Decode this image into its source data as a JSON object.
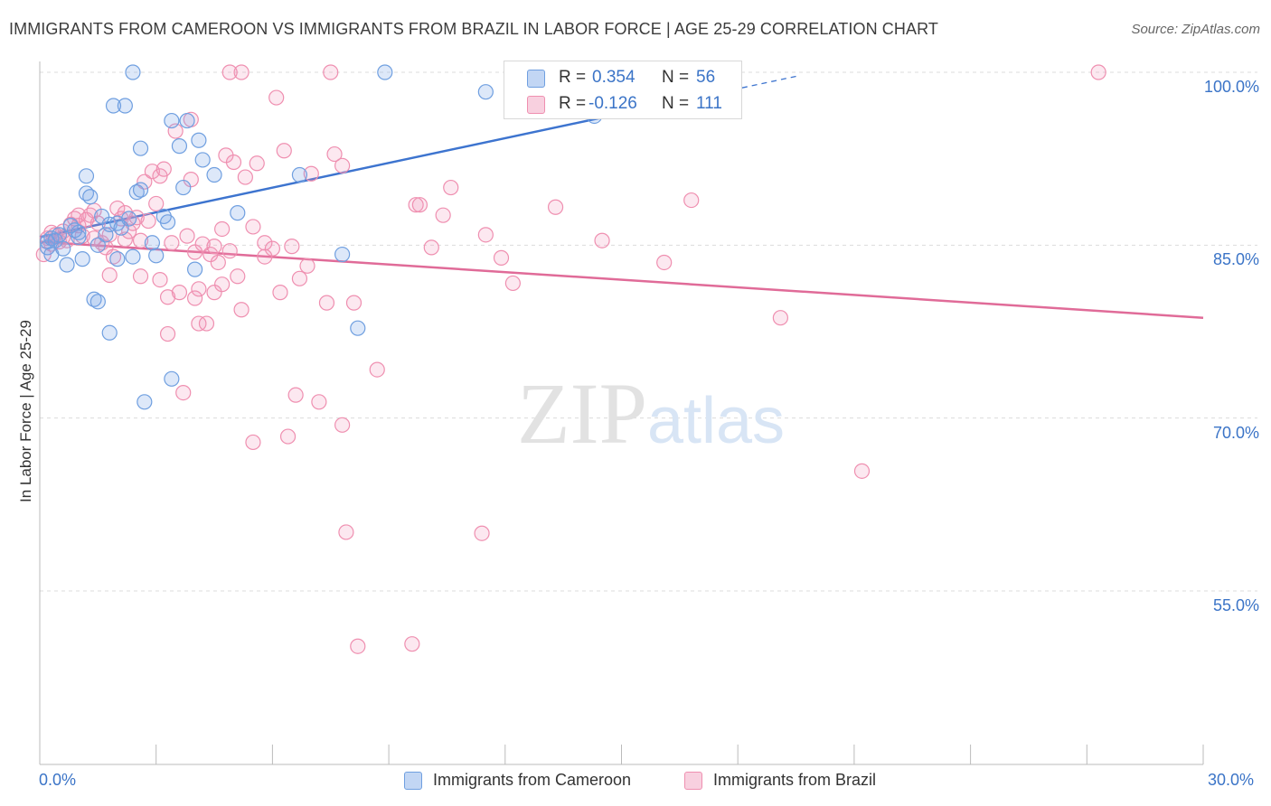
{
  "title": "IMMIGRANTS FROM CAMEROON VS IMMIGRANTS FROM BRAZIL IN LABOR FORCE | AGE 25-29 CORRELATION CHART",
  "source": "Source: ZipAtlas.com",
  "watermark": "ZIPatlas",
  "colors": {
    "cameroon": "#6f9fe0",
    "cameroon_fill": "rgba(120,165,230,0.25)",
    "cameroon_line": "#3d74cf",
    "brazil": "#ef8fb0",
    "brazil_fill": "rgba(240,150,185,0.22)",
    "brazil_line": "#e06b98",
    "tick_text": "#3b74c7",
    "grid": "#dcdcdc"
  },
  "legend": {
    "rows": [
      {
        "r_label": "R =",
        "r_value": "0.354",
        "n_label": "N =",
        "n_value": "56"
      },
      {
        "r_label": "R =",
        "r_value": "-0.126",
        "n_label": "N =",
        "n_value": "111"
      }
    ]
  },
  "bottom_legend": [
    "Immigrants from Cameroon",
    "Immigrants from Brazil"
  ],
  "chart_data": {
    "type": "scatter",
    "title": "IMMIGRANTS FROM CAMEROON VS IMMIGRANTS FROM BRAZIL IN LABOR FORCE | AGE 25-29 CORRELATION CHART",
    "xlabel": "",
    "ylabel": "In Labor Force | Age 25-29",
    "xlim": [
      0,
      30
    ],
    "ylim": [
      40,
      100
    ],
    "x_tick_labels": [
      "0.0%",
      "30.0%"
    ],
    "y_ticks": [
      55,
      70,
      85,
      100
    ],
    "y_tick_labels": [
      "55.0%",
      "70.0%",
      "85.0%",
      "100.0%"
    ],
    "grid": true,
    "legend_position": "top-center",
    "series": [
      {
        "name": "Immigrants from Cameroon",
        "r": 0.354,
        "n": 56,
        "trend": {
          "x0": 0,
          "y0": 85.7,
          "x1": 15.1,
          "y1": 96.5,
          "dash_to_x": 19.5
        },
        "points": [
          [
            0.2,
            85.3
          ],
          [
            0.2,
            84.8
          ],
          [
            0.3,
            84.2
          ],
          [
            0.3,
            85.6
          ],
          [
            0.4,
            85.4
          ],
          [
            0.5,
            85.9
          ],
          [
            0.6,
            84.7
          ],
          [
            0.7,
            83.3
          ],
          [
            0.8,
            86.7
          ],
          [
            1.0,
            86.1
          ],
          [
            1.1,
            83.8
          ],
          [
            1.2,
            91.0
          ],
          [
            1.2,
            89.5
          ],
          [
            1.3,
            89.2
          ],
          [
            1.4,
            80.3
          ],
          [
            1.5,
            80.1
          ],
          [
            1.6,
            87.5
          ],
          [
            1.7,
            85.9
          ],
          [
            1.8,
            86.8
          ],
          [
            1.8,
            77.4
          ],
          [
            1.9,
            97.1
          ],
          [
            2.0,
            86.9
          ],
          [
            2.0,
            83.8
          ],
          [
            2.2,
            97.1
          ],
          [
            2.3,
            87.3
          ],
          [
            2.4,
            100.0
          ],
          [
            2.4,
            84.0
          ],
          [
            2.5,
            89.6
          ],
          [
            2.6,
            93.4
          ],
          [
            2.6,
            89.8
          ],
          [
            2.7,
            71.4
          ],
          [
            2.9,
            85.2
          ],
          [
            3.0,
            84.1
          ],
          [
            3.2,
            87.5
          ],
          [
            3.3,
            87.0
          ],
          [
            3.4,
            73.4
          ],
          [
            3.4,
            95.8
          ],
          [
            3.6,
            93.6
          ],
          [
            3.7,
            90.0
          ],
          [
            3.8,
            95.8
          ],
          [
            4.0,
            82.9
          ],
          [
            4.1,
            94.1
          ],
          [
            4.2,
            92.4
          ],
          [
            4.5,
            91.1
          ],
          [
            5.1,
            87.8
          ],
          [
            6.7,
            91.1
          ],
          [
            7.8,
            84.2
          ],
          [
            8.2,
            77.8
          ],
          [
            8.9,
            100.0
          ],
          [
            11.5,
            98.3
          ],
          [
            13.4,
            97.8
          ],
          [
            14.3,
            96.2
          ],
          [
            1.5,
            85.0
          ],
          [
            0.9,
            86.3
          ],
          [
            1.0,
            85.7
          ],
          [
            2.1,
            86.5
          ]
        ]
      },
      {
        "name": "Immigrants from Brazil",
        "r": -0.126,
        "n": 111,
        "trend": {
          "x0": 0,
          "y0": 85.3,
          "x1": 30,
          "y1": 78.7
        },
        "points": [
          [
            0.1,
            84.2
          ],
          [
            0.2,
            85.6
          ],
          [
            0.3,
            85.1
          ],
          [
            0.3,
            86.1
          ],
          [
            0.4,
            85.9
          ],
          [
            0.5,
            85.3
          ],
          [
            0.6,
            86.2
          ],
          [
            0.7,
            85.4
          ],
          [
            0.8,
            86.8
          ],
          [
            0.9,
            87.3
          ],
          [
            1.0,
            87.6
          ],
          [
            1.0,
            86.7
          ],
          [
            1.1,
            85.8
          ],
          [
            1.2,
            87.2
          ],
          [
            1.3,
            87.6
          ],
          [
            1.4,
            85.6
          ],
          [
            1.5,
            86.9
          ],
          [
            1.6,
            85.2
          ],
          [
            1.7,
            84.8
          ],
          [
            1.8,
            85.9
          ],
          [
            1.8,
            82.4
          ],
          [
            1.9,
            84.0
          ],
          [
            2.0,
            88.2
          ],
          [
            2.1,
            87.3
          ],
          [
            2.2,
            85.5
          ],
          [
            2.3,
            86.2
          ],
          [
            2.4,
            86.9
          ],
          [
            2.5,
            87.4
          ],
          [
            2.6,
            82.3
          ],
          [
            2.6,
            85.4
          ],
          [
            2.7,
            90.5
          ],
          [
            2.8,
            87.1
          ],
          [
            2.9,
            91.4
          ],
          [
            3.0,
            88.6
          ],
          [
            3.1,
            91.0
          ],
          [
            3.1,
            82.0
          ],
          [
            3.2,
            91.6
          ],
          [
            3.3,
            80.5
          ],
          [
            3.3,
            77.3
          ],
          [
            3.4,
            85.2
          ],
          [
            3.5,
            94.9
          ],
          [
            3.6,
            80.9
          ],
          [
            3.7,
            72.2
          ],
          [
            3.8,
            85.8
          ],
          [
            3.9,
            90.7
          ],
          [
            4.0,
            84.4
          ],
          [
            4.0,
            80.4
          ],
          [
            4.1,
            78.2
          ],
          [
            4.1,
            81.2
          ],
          [
            4.2,
            85.1
          ],
          [
            4.3,
            78.2
          ],
          [
            4.4,
            84.2
          ],
          [
            4.5,
            80.9
          ],
          [
            4.5,
            84.9
          ],
          [
            4.6,
            83.5
          ],
          [
            4.7,
            86.4
          ],
          [
            4.7,
            81.6
          ],
          [
            4.8,
            92.8
          ],
          [
            4.9,
            84.5
          ],
          [
            5.0,
            92.2
          ],
          [
            5.1,
            82.3
          ],
          [
            5.2,
            79.4
          ],
          [
            5.3,
            90.9
          ],
          [
            5.5,
            86.6
          ],
          [
            5.5,
            67.9
          ],
          [
            5.6,
            92.1
          ],
          [
            5.8,
            85.2
          ],
          [
            5.8,
            84.0
          ],
          [
            6.0,
            84.7
          ],
          [
            6.1,
            97.8
          ],
          [
            6.2,
            80.9
          ],
          [
            6.3,
            93.2
          ],
          [
            6.4,
            68.4
          ],
          [
            6.5,
            84.9
          ],
          [
            6.6,
            72.0
          ],
          [
            6.7,
            82.1
          ],
          [
            6.9,
            83.2
          ],
          [
            7.0,
            91.2
          ],
          [
            7.2,
            71.4
          ],
          [
            7.4,
            80.0
          ],
          [
            7.6,
            92.9
          ],
          [
            7.8,
            91.9
          ],
          [
            7.8,
            69.4
          ],
          [
            7.9,
            60.1
          ],
          [
            8.1,
            80.0
          ],
          [
            8.2,
            50.2
          ],
          [
            8.7,
            74.2
          ],
          [
            9.6,
            50.4
          ],
          [
            9.7,
            88.5
          ],
          [
            9.8,
            88.5
          ],
          [
            10.1,
            84.8
          ],
          [
            10.4,
            87.6
          ],
          [
            10.6,
            90.0
          ],
          [
            11.4,
            60.0
          ],
          [
            11.5,
            85.9
          ],
          [
            11.9,
            83.9
          ],
          [
            12.2,
            81.7
          ],
          [
            13.3,
            88.3
          ],
          [
            14.5,
            85.4
          ],
          [
            15.3,
            100.0
          ],
          [
            16.1,
            83.5
          ],
          [
            16.8,
            88.9
          ],
          [
            19.1,
            78.7
          ],
          [
            21.2,
            65.4
          ],
          [
            27.3,
            100.0
          ],
          [
            1.4,
            88.0
          ],
          [
            2.2,
            87.8
          ],
          [
            0.6,
            85.7
          ],
          [
            4.9,
            100.0
          ],
          [
            5.2,
            100.0
          ],
          [
            7.5,
            100.0
          ],
          [
            3.9,
            95.9
          ]
        ]
      }
    ]
  }
}
